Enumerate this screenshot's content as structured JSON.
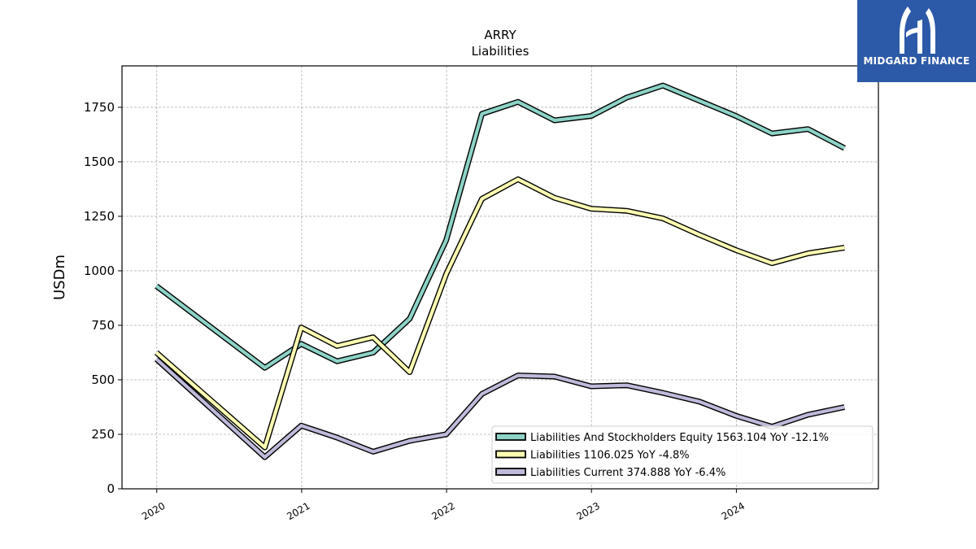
{
  "logo": {
    "text": "MIDGARD FINANCE"
  },
  "chart_data": {
    "type": "line",
    "title": "ARRY",
    "subtitle": "Liabilities",
    "xlabel": "",
    "ylabel": "USDm",
    "xlim": [
      2019.76,
      2024.98
    ],
    "ylim": [
      0,
      1940
    ],
    "x_ticks": [
      2020,
      2021,
      2022,
      2023,
      2024
    ],
    "y_ticks": [
      0,
      250,
      500,
      750,
      1000,
      1250,
      1500,
      1750
    ],
    "grid": true,
    "legend_position": "lower-right",
    "x": [
      "2019-12-31",
      "2020-09-30",
      "2020-12-31",
      "2021-03-31",
      "2021-06-30",
      "2021-09-30",
      "2021-12-31",
      "2022-03-31",
      "2022-06-30",
      "2022-09-30",
      "2022-12-31",
      "2023-03-31",
      "2023-06-30",
      "2023-09-30",
      "2023-12-31",
      "2024-03-31",
      "2024-06-30",
      "2024-09-30"
    ],
    "series": [
      {
        "name": "Liabilities And Stockholders Equity",
        "label": "Liabilities And Stockholders Equity  1563.104 YoY -12.1%",
        "color": "#8dd3c7",
        "values": [
          930,
          555,
          665,
          585,
          625,
          780,
          1140,
          1720,
          1775,
          1690,
          1710,
          1795,
          1850,
          1780,
          1710,
          1630,
          1650,
          1563
        ]
      },
      {
        "name": "Liabilities",
        "label": "Liabilities  1106.025 YoY -4.8%",
        "color": "#ffffb3",
        "values": [
          625,
          190,
          740,
          655,
          695,
          535,
          985,
          1330,
          1420,
          1335,
          1285,
          1275,
          1240,
          1165,
          1095,
          1035,
          1080,
          1106
        ]
      },
      {
        "name": "Liabilities Current",
        "label": "Liabilities Current  374.888 YoY -6.4%",
        "color": "#bebada",
        "values": [
          595,
          145,
          290,
          235,
          170,
          220,
          250,
          435,
          520,
          515,
          470,
          475,
          440,
          400,
          335,
          285,
          340,
          375
        ]
      }
    ]
  }
}
